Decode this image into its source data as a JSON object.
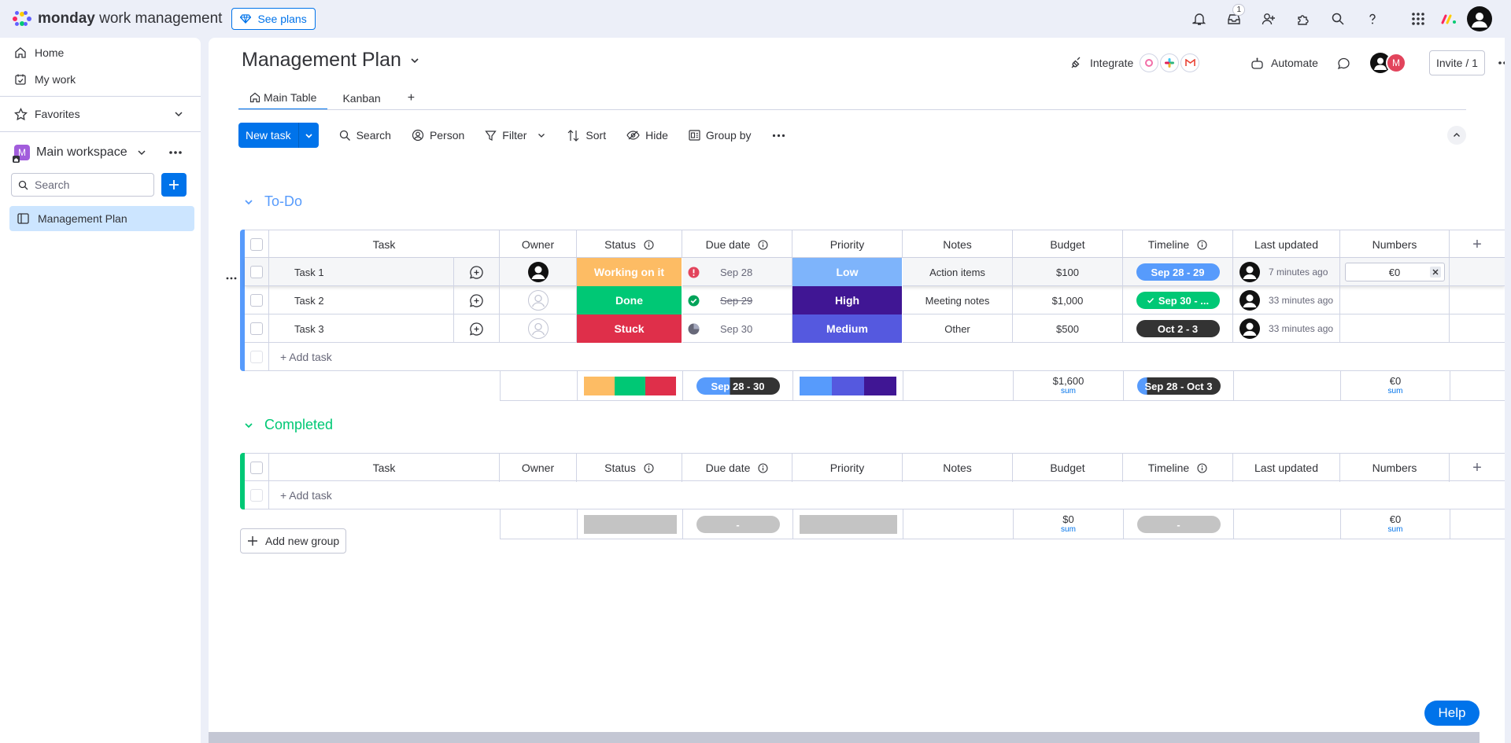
{
  "app": {
    "brand": "monday",
    "brand_suffix": "work management",
    "see_plans": "See plans",
    "inbox_badge": "1",
    "icons": [
      "bell-icon",
      "inbox-icon",
      "invite-member-icon",
      "apps-icon",
      "search-icon",
      "help-icon",
      "app-launcher-icon"
    ]
  },
  "sidebar": {
    "home": "Home",
    "my_work": "My work",
    "favorites": "Favorites",
    "workspace_initial": "M",
    "workspace_name": "Main workspace",
    "search_placeholder": "Search",
    "boards": [
      "Management Plan"
    ]
  },
  "board": {
    "title": "Management Plan",
    "integrate": "Integrate",
    "automate": "Automate",
    "invite": "Invite / 1",
    "member_initial": "M",
    "tabs": [
      {
        "label": "Main Table",
        "active": true
      },
      {
        "label": "Kanban",
        "active": false
      }
    ],
    "add_view": "+",
    "toolbar": {
      "new_task": "New task",
      "search": "Search",
      "person": "Person",
      "filter": "Filter",
      "sort": "Sort",
      "hide": "Hide",
      "group_by": "Group by"
    }
  },
  "columns": [
    "Task",
    "Owner",
    "Status",
    "Due date",
    "Priority",
    "Notes",
    "Budget",
    "Timeline",
    "Last updated",
    "Numbers"
  ],
  "add_column": "+",
  "groups": [
    {
      "title": "To-Do",
      "color": "#579bfc",
      "rows": [
        {
          "task": "Task 1",
          "owner": "filled",
          "status": "Working on it",
          "status_color": "#fdbc64",
          "due_icon": "alert",
          "due": "Sep 28",
          "due_strike": false,
          "priority": "Low",
          "priority_color": "#7eb4fb",
          "notes": "Action items",
          "budget": "$100",
          "timeline": "Sep 28 - 29",
          "timeline_color": "#579bfc",
          "updated": "7 minutes ago",
          "numbers": "€0",
          "editing": true
        },
        {
          "task": "Task 2",
          "owner": "empty",
          "status": "Done",
          "status_color": "#00c875",
          "due_icon": "check",
          "due": "Sep 29",
          "due_strike": true,
          "priority": "High",
          "priority_color": "#401694",
          "notes": "Meeting notes",
          "budget": "$1,000",
          "timeline": "Sep 30 - ...",
          "timeline_color": "#00c875",
          "updated": "33 minutes ago",
          "numbers": "",
          "editing": false
        },
        {
          "task": "Task 3",
          "owner": "empty",
          "status": "Stuck",
          "status_color": "#df2f4a",
          "due_icon": "clock",
          "due": "Sep 30",
          "due_strike": false,
          "priority": "Medium",
          "priority_color": "#5559df",
          "notes": "Other",
          "budget": "$500",
          "timeline": "Oct 2 - 3",
          "timeline_color": "#333333",
          "updated": "33 minutes ago",
          "numbers": "",
          "editing": false
        }
      ],
      "add_task": "+ Add task",
      "summary": {
        "due": "Sep 28 - 30",
        "budget": "$1,600",
        "budget_label": "sum",
        "timeline": "Sep 28 - Oct 3",
        "numbers": "€0",
        "numbers_label": "sum"
      }
    },
    {
      "title": "Completed",
      "color": "#00c875",
      "rows": [],
      "add_task": "+ Add task",
      "summary": {
        "due": "-",
        "budget": "$0",
        "budget_label": "sum",
        "timeline": "-",
        "numbers": "€0",
        "numbers_label": "sum"
      }
    }
  ],
  "add_group": "Add new group",
  "help": "Help"
}
